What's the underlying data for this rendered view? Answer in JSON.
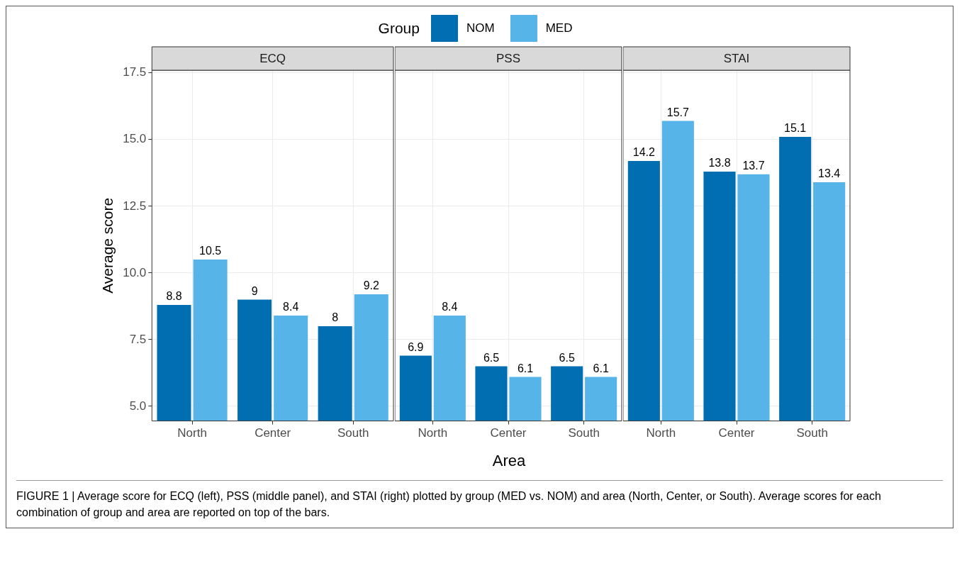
{
  "chart_data": [
    {
      "type": "bar",
      "title": "ECQ",
      "ylabel": "Average score",
      "legend": "top",
      "legend_title": "Group",
      "categories": [
        "North",
        "Center",
        "South"
      ],
      "series": [
        {
          "name": "NOM",
          "color": "#006eb0",
          "values": [
            8.8,
            9,
            8
          ]
        },
        {
          "name": "MED",
          "color": "#56b4e9",
          "values": [
            10.5,
            8.4,
            9.2
          ]
        }
      ],
      "ylim": [
        4.45,
        17.6
      ],
      "yticks": [
        {
          "value": 5,
          "label": "5.0"
        },
        {
          "value": 7.5,
          "label": "7.5"
        },
        {
          "value": 10,
          "label": "10.0"
        },
        {
          "value": 12.5,
          "label": "12.5"
        },
        {
          "value": 15,
          "label": "15.0"
        },
        {
          "value": 17.5,
          "label": "17.5"
        }
      ],
      "grid": true,
      "data_labels": true,
      "annotations": [
        "FIGURE 1 | Average score for ECQ (left), PSS (middle panel), and STAI (right) plotted by group (MED vs. NOM) and area (North, Center, or South). Average scores for each combination of group and area are reported on top of the bars."
      ]
    },
    {
      "type": "bar",
      "title": "PSS",
      "xlabel": "Area",
      "categories": [
        "North",
        "Center",
        "South"
      ],
      "series": [
        {
          "color": "#006eb0",
          "values": [
            6.9,
            6.5,
            6.5
          ]
        },
        {
          "color": "#56b4e9",
          "values": [
            8.4,
            6.1,
            6.1
          ]
        }
      ],
      "ylim": [
        4.45,
        17.6
      ],
      "yticks": [
        5,
        7.5,
        10,
        12.5,
        15,
        17.5
      ],
      "grid": true,
      "data_labels": true,
      "tick_labels": "x"
    },
    {
      "type": "bar",
      "title": "STAI",
      "categories": [
        "North",
        "Center",
        "South"
      ],
      "series": [
        {
          "color": "#006eb0",
          "values": [
            14.2,
            13.8,
            15.1
          ]
        },
        {
          "color": "#56b4e9",
          "values": [
            15.7,
            13.7,
            13.4
          ]
        }
      ],
      "ylim": [
        4.45,
        17.6
      ],
      "yticks": [
        5,
        7.5,
        10,
        12.5,
        15,
        17.5
      ],
      "grid": true,
      "data_labels": true,
      "tick_labels": "x"
    }
  ]
}
